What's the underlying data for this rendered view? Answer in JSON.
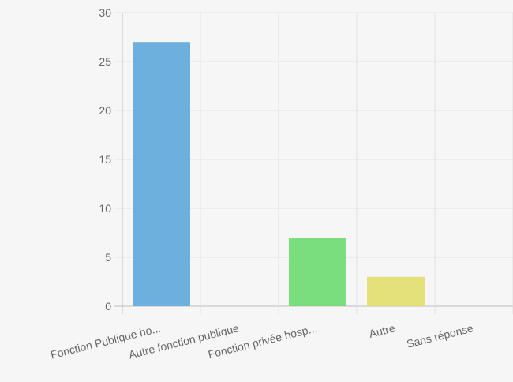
{
  "chart_data": {
    "type": "bar",
    "categories": [
      "Fonction Publique ho...",
      "Autre fonction publique",
      "Fonction privée hosp...",
      "Autre",
      "Sans réponse"
    ],
    "values": [
      27,
      0,
      7,
      3,
      0
    ],
    "colors": [
      "#5ea9da",
      "#ee6f6f",
      "#6ddb6f",
      "#e2df6c",
      "#a06fd6"
    ],
    "ylim": [
      0,
      30
    ],
    "yticks": [
      0,
      5,
      10,
      15,
      20,
      25,
      30
    ],
    "grid": true,
    "title": "",
    "xlabel": "",
    "ylabel": ""
  }
}
